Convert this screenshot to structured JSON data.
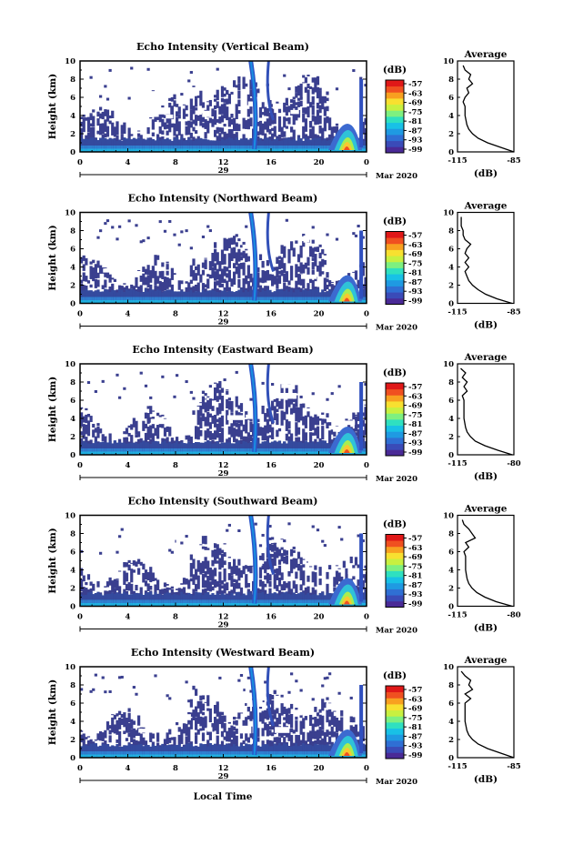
{
  "figure": {
    "xlabel_bottom": "Local Time",
    "date_label": "Mar 2020",
    "day_label": "29"
  },
  "colorbar": {
    "title": "(dB)",
    "ticks": [
      "-57",
      "-63",
      "-69",
      "-75",
      "-81",
      "-87",
      "-93",
      "-99"
    ],
    "colors": [
      "#4a2a96",
      "#3a4bb8",
      "#2f6fd4",
      "#1f9ae2",
      "#18c1e6",
      "#2fe0c0",
      "#7ef080",
      "#c8f040",
      "#f8e030",
      "#f8a020",
      "#f05020",
      "#e01818"
    ]
  },
  "chart_data": [
    {
      "type": "heatmap",
      "title": "Echo Intensity (Vertical Beam)",
      "ylabel": "Height (km)",
      "ylim": [
        0,
        10
      ],
      "xlim": [
        0,
        24
      ],
      "xticks": [
        "0",
        "4",
        "8",
        "12",
        "16",
        "20",
        "0"
      ],
      "yticks": [
        "0",
        "2",
        "4",
        "6",
        "8",
        "10"
      ],
      "zrange": [
        -99,
        -57
      ],
      "profile": {
        "title": "Average",
        "xlabel": "(dB)",
        "xticks": [
          "-115",
          "-85"
        ],
        "xlim": [
          -115,
          -85
        ],
        "heights": [
          0,
          0.5,
          1,
          1.5,
          2,
          2.5,
          3,
          3.5,
          4,
          4.5,
          5,
          5.5,
          6,
          6.5,
          7,
          7.5,
          8,
          8.5,
          9,
          9.5
        ],
        "values": [
          -85,
          -92,
          -99,
          -104,
          -107,
          -109,
          -110,
          -110.5,
          -111,
          -111,
          -111,
          -112,
          -111,
          -109,
          -110,
          -107,
          -109,
          -108,
          -111,
          -112
        ]
      }
    },
    {
      "type": "heatmap",
      "title": "Echo Intensity (Northward Beam)",
      "ylabel": "Height (km)",
      "ylim": [
        0,
        10
      ],
      "xlim": [
        0,
        24
      ],
      "xticks": [
        "0",
        "4",
        "8",
        "12",
        "16",
        "20",
        "0"
      ],
      "yticks": [
        "0",
        "2",
        "4",
        "6",
        "8",
        "10"
      ],
      "zrange": [
        -99,
        -57
      ],
      "profile": {
        "title": "Average",
        "xlabel": "(dB)",
        "xticks": [
          "-115",
          "-85"
        ],
        "xlim": [
          -115,
          -85
        ],
        "heights": [
          0,
          0.5,
          1,
          1.5,
          2,
          2.5,
          3,
          3.5,
          4,
          4.5,
          5,
          5.5,
          6,
          6.5,
          7,
          7.5,
          8,
          8.5,
          9,
          9.5
        ],
        "values": [
          -86,
          -94,
          -100,
          -104,
          -107,
          -109,
          -110,
          -111,
          -109,
          -111,
          -109,
          -111,
          -110,
          -108,
          -111,
          -112,
          -112,
          -113,
          -113,
          -113
        ]
      }
    },
    {
      "type": "heatmap",
      "title": "Echo Intensity (Eastward Beam)",
      "ylabel": "Height (km)",
      "ylim": [
        0,
        10
      ],
      "xlim": [
        0,
        24
      ],
      "xticks": [
        "0",
        "4",
        "8",
        "12",
        "16",
        "20",
        "0"
      ],
      "yticks": [
        "0",
        "2",
        "4",
        "6",
        "8",
        "10"
      ],
      "zrange": [
        -99,
        -57
      ],
      "profile": {
        "title": "Average",
        "xlabel": "(dB)",
        "xticks": [
          "-115",
          "-80"
        ],
        "xlim": [
          -115,
          -80
        ],
        "heights": [
          0,
          0.5,
          1,
          1.5,
          2,
          2.5,
          3,
          3.5,
          4,
          4.5,
          5,
          5.5,
          6,
          6.5,
          7,
          7.5,
          8,
          8.5,
          9,
          9.5
        ],
        "values": [
          -81,
          -90,
          -98,
          -104,
          -107,
          -109,
          -110,
          -110.5,
          -111,
          -111,
          -111,
          -111,
          -111,
          -112,
          -109,
          -111,
          -109,
          -112,
          -110,
          -113
        ]
      }
    },
    {
      "type": "heatmap",
      "title": "Echo Intensity (Southward Beam)",
      "ylabel": "Height (km)",
      "ylim": [
        0,
        10
      ],
      "xlim": [
        0,
        24
      ],
      "xticks": [
        "0",
        "4",
        "8",
        "12",
        "16",
        "20",
        "0"
      ],
      "yticks": [
        "0",
        "2",
        "4",
        "6",
        "8",
        "10"
      ],
      "zrange": [
        -99,
        -57
      ],
      "profile": {
        "title": "Average",
        "xlabel": "(dB)",
        "xticks": [
          "-115",
          "-80"
        ],
        "xlim": [
          -115,
          -80
        ],
        "heights": [
          0,
          0.5,
          1,
          1.5,
          2,
          2.5,
          3,
          3.5,
          4,
          4.5,
          5,
          5.5,
          6,
          6.5,
          7,
          7.5,
          8,
          8.5,
          9,
          9.5
        ],
        "values": [
          -81,
          -91,
          -98,
          -103,
          -106,
          -108,
          -109,
          -109.5,
          -110,
          -110,
          -110,
          -110,
          -111,
          -108,
          -110,
          -104,
          -106,
          -108,
          -111,
          -112
        ]
      }
    },
    {
      "type": "heatmap",
      "title": "Echo Intensity (Westward Beam)",
      "ylabel": "Height (km)",
      "ylim": [
        0,
        10
      ],
      "xlim": [
        0,
        24
      ],
      "xticks": [
        "0",
        "4",
        "8",
        "12",
        "16",
        "20",
        "0"
      ],
      "yticks": [
        "0",
        "2",
        "4",
        "6",
        "8",
        "10"
      ],
      "zrange": [
        -99,
        -57
      ],
      "profile": {
        "title": "Average",
        "xlabel": "(dB)",
        "xticks": [
          "-115",
          "-85"
        ],
        "xlim": [
          -115,
          -85
        ],
        "heights": [
          0,
          0.5,
          1,
          1.5,
          2,
          2.5,
          3,
          3.5,
          4,
          4.5,
          5,
          5.5,
          6,
          6.5,
          7,
          7.5,
          8,
          8.5,
          9,
          9.5
        ],
        "values": [
          -85,
          -92,
          -99,
          -104,
          -107,
          -109,
          -110,
          -110.5,
          -111,
          -111,
          -111,
          -111,
          -111,
          -108,
          -111,
          -107,
          -109,
          -108,
          -111,
          -113
        ]
      }
    }
  ]
}
